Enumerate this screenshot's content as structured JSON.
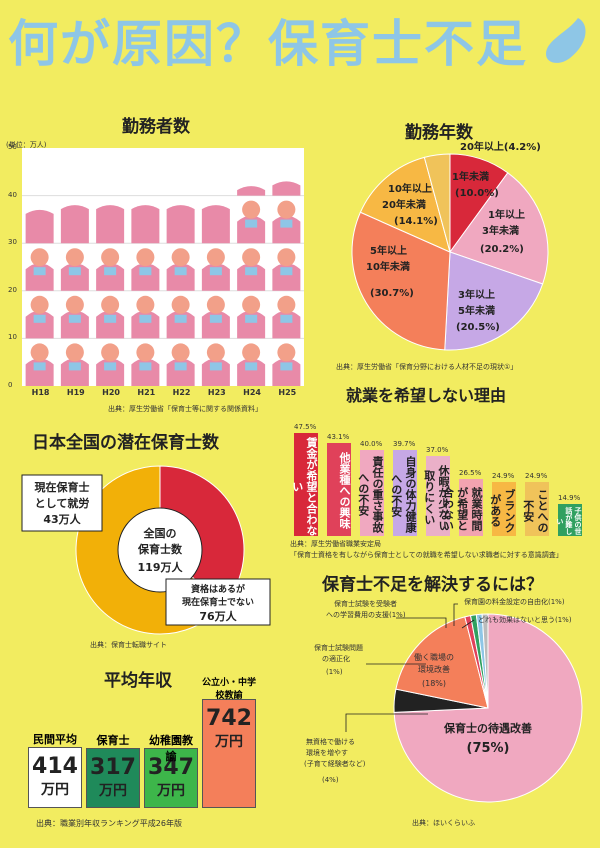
{
  "title": "何が原因？保育士不足",
  "workers": {
    "heading": "勤務者数",
    "unit": "(単位：万人)",
    "yticks": [
      "0",
      "10",
      "20",
      "30",
      "40",
      "50"
    ],
    "years": [
      "H18",
      "H19",
      "H20",
      "H21",
      "H22",
      "H23",
      "H24",
      "H25"
    ],
    "source": "出典：厚生労働省「保育士等に関する関係資料」"
  },
  "chart_data": [
    {
      "type": "bar",
      "title": "勤務者数",
      "categories": [
        "H18",
        "H19",
        "H20",
        "H21",
        "H22",
        "H23",
        "H24",
        "H25"
      ],
      "values": [
        37,
        38,
        38,
        38,
        38,
        38,
        42,
        43
      ],
      "ylabel": "(単位：万人)",
      "ylim": [
        0,
        50
      ]
    },
    {
      "type": "pie",
      "title": "勤務年数",
      "labels": [
        "1年未満",
        "1年以上3年未満",
        "3年以上5年未満",
        "5年以上10年未満",
        "10年以上20年未満",
        "20年以上"
      ],
      "values": [
        10.0,
        20.2,
        20.5,
        30.7,
        14.1,
        4.2
      ]
    },
    {
      "type": "bar",
      "title": "就業を希望しない理由",
      "categories": [
        "賃金が希望と合わない",
        "他業種への興味",
        "責任の重さ・事故への不安",
        "自身の体力・健康への不安",
        "休暇が少ない・取りにくい",
        "就業時間が希望と合わない",
        "ブランクがある",
        "ことへの不安",
        "子供の世話が難しい"
      ],
      "values": [
        47.5,
        43.1,
        40.0,
        39.7,
        37.0,
        26.5,
        24.9,
        24.9,
        14.9
      ]
    },
    {
      "type": "pie",
      "title": "日本全国の潜在保育士数",
      "labels": [
        "現在保育士として就労",
        "資格はあるが現在保育士でない"
      ],
      "values": [
        43,
        76
      ]
    },
    {
      "type": "bar",
      "title": "平均年収",
      "categories": [
        "民間平均",
        "保育士",
        "幼稚園教諭",
        "公立小・中学校教諭"
      ],
      "values": [
        414,
        317,
        347,
        742
      ]
    },
    {
      "type": "pie",
      "title": "保育士不足を解決するには？",
      "labels": [
        "保育士の待遇改善",
        "無資格で働ける環境を増やす(子育て経験者など)",
        "働く職場の環境改善",
        "保育士試験問題の適正化",
        "保育士試験を受験者への学習費用の支援",
        "保育園の料金設定の自由化",
        "どれも効果はないと思う"
      ],
      "values": [
        75,
        4,
        18,
        1,
        1,
        1,
        1
      ]
    }
  ],
  "tenure": {
    "heading": "勤務年数",
    "l1": "1年未満",
    "l1p": "(10.0%)",
    "l2": "1年以上",
    "l2b": "3年未満",
    "l2p": "(20.2%)",
    "l3": "3年以上",
    "l3b": "5年未満",
    "l3p": "(20.5%)",
    "l4": "5年以上",
    "l4b": "10年未満",
    "l4p": "(30.7%)",
    "l5": "10年以上",
    "l5b": "20年未満",
    "l5p": "(14.1%)",
    "l6": "20年以上(4.2%)",
    "source": "出典：厚生労働省「保育分野における人材不足の現状①」"
  },
  "reasons": {
    "heading": "就業を希望しない理由",
    "items": [
      {
        "label": "賃金が希望と合わない",
        "pct": "47.5%",
        "color": "#d8283a"
      },
      {
        "label": "他業種への興味",
        "pct": "43.1%",
        "color": "#e0415a"
      },
      {
        "label": "責任の重さ事故への不安",
        "pct": "40.0%",
        "color": "#f0a8c0"
      },
      {
        "label": "自身の体力健康への不安",
        "pct": "39.7%",
        "color": "#c6a8e6"
      },
      {
        "label": "休暇が少ない取りにくい",
        "pct": "37.0%",
        "color": "#eab0c8"
      },
      {
        "label": "就業時間が希望と合わない",
        "pct": "26.5%",
        "color": "#f2a3b0"
      },
      {
        "label": "ブランクがある",
        "pct": "24.9%",
        "color": "#f7b844"
      },
      {
        "label": "ことへの不安",
        "pct": "24.9%",
        "color": "#f0c35a"
      },
      {
        "label": "子供の世話が難しい",
        "pct": "14.9%",
        "color": "#30a060"
      }
    ],
    "source1": "出典：厚生労働省職業安定局",
    "source2": "「保育士資格を有しながら保育士としての就職を希望しない求職者に対する意識調査」"
  },
  "latent": {
    "heading": "日本全国の潜在保育士数",
    "center1": "全国の",
    "center2": "保育士数",
    "center3": "119万人",
    "a1": "現在保育士",
    "a2": "として就労",
    "a3": "43万人",
    "b1": "資格はあるが",
    "b2": "現在保育士でない",
    "b3": "76万人",
    "source": "出典：保育士転職サイト"
  },
  "income": {
    "heading": "平均年収",
    "items": [
      {
        "label": "民間平均",
        "value": "414",
        "unit": "万円",
        "color": "#ffffff"
      },
      {
        "label": "保育士",
        "value": "317",
        "unit": "万円",
        "color": "#1f8a5a"
      },
      {
        "label": "幼稚園教諭",
        "value": "347",
        "unit": "万円",
        "color": "#3db64a"
      },
      {
        "label": "公立小・中学校教諭",
        "value": "742",
        "unit": "万円",
        "color": "#f47f5a"
      }
    ],
    "source": "出典：職業別年収ランキング平成26年版"
  },
  "solve": {
    "heading": "保育士不足を解決するには？",
    "main": "保育士の待遇改善",
    "mainp": "(75%)",
    "env": "働く職場の",
    "env2": "環境改善",
    "envp": "(18%)",
    "noq1": "無資格で働ける",
    "noq2": "環境を増やす",
    "noq3": "(子育て経験者など)",
    "noqp": "(4%)",
    "exam1": "保育士試験問題",
    "exam2": "の適正化",
    "examp": "(1%)",
    "study1": "保育士試験を受験者",
    "study2": "への学習費用の支援(1%)",
    "fee": "保育園の料金設定の自由化(1%)",
    "none": "どれも効果はないと思う(1%)",
    "source": "出典：ほいくらいふ"
  }
}
